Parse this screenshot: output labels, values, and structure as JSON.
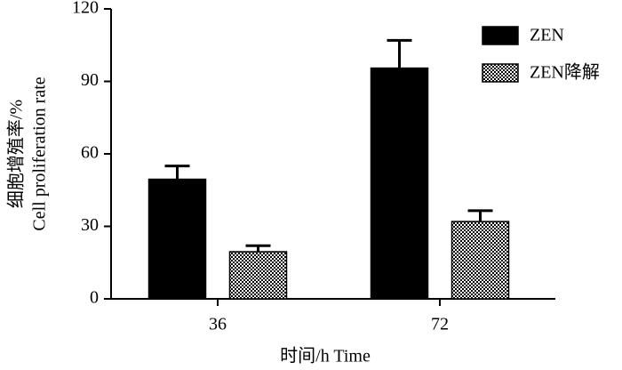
{
  "chart_data": {
    "type": "bar",
    "y_label_lines": [
      "细胞增殖率/%",
      "Cell proliferation rate"
    ],
    "x_label": "时间/h  Time",
    "categories": [
      "36",
      "72"
    ],
    "series": [
      {
        "name": "ZEN",
        "color": "#000000",
        "values": [
          49.5,
          95.5
        ],
        "errors": [
          5.5,
          11.5
        ]
      },
      {
        "name": "ZEN降解",
        "color": "#000000",
        "pattern": "checker",
        "values": [
          19.5,
          32
        ],
        "errors": [
          2.5,
          4.5
        ]
      }
    ],
    "ylim": [
      0,
      120
    ],
    "yticks": [
      0,
      30,
      60,
      90,
      120
    ],
    "legend": "upper right",
    "grid": false
  }
}
